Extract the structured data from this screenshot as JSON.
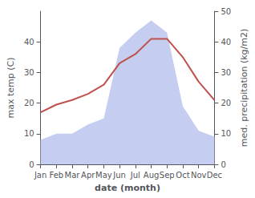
{
  "chart_data": {
    "type": "line",
    "xlabel": "date (month)",
    "ylabel": "max temp (C)",
    "y2label": "med. precipitation (kg/m2)",
    "categories": [
      "Jan",
      "Feb",
      "Mar",
      "Apr",
      "May",
      "Jun",
      "Jul",
      "Aug",
      "Sep",
      "Oct",
      "Nov",
      "Dec"
    ],
    "series": [
      {
        "type": "area",
        "axis": "y2",
        "color": "#c5cef0",
        "values": [
          8,
          10,
          10,
          13,
          15,
          38,
          43,
          47,
          43,
          19,
          11,
          9
        ]
      },
      {
        "type": "line",
        "color": "#c0504d",
        "values": [
          17,
          19.5,
          21,
          23,
          26,
          33,
          36,
          41,
          41,
          35,
          27,
          21
        ]
      }
    ],
    "ylim": [
      0,
      50
    ],
    "yticks": [
      0,
      10,
      20,
      30,
      40
    ],
    "y2lim": [
      0,
      50
    ],
    "y2ticks": [
      0,
      10,
      20,
      30,
      40,
      50
    ],
    "grid": false
  }
}
